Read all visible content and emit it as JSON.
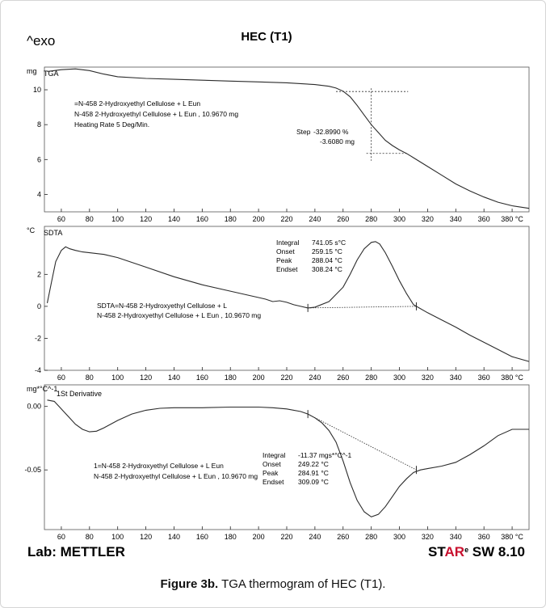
{
  "header": {
    "exo_label": "^exo",
    "title": "HEC (T1)"
  },
  "footer": {
    "lab": "Lab: METTLER",
    "software_pre": "ST",
    "software_ar": "AR",
    "software_e": "e",
    "software_post": " SW 8.10"
  },
  "caption": {
    "bold": "Figure 3b.",
    "text": " TGA thermogram of HEC (T1)."
  },
  "colors": {
    "curve": "#2b2b2b",
    "axis": "#222222",
    "accent_red": "#c8102e"
  },
  "chart_data": [
    {
      "type": "line",
      "title": "TGA",
      "ylabel": "mg",
      "x_unit": "°C",
      "xlim": [
        48,
        392
      ],
      "ylim": [
        3,
        11.3
      ],
      "x_ticks": [
        60,
        80,
        100,
        120,
        140,
        160,
        180,
        200,
        220,
        240,
        260,
        280,
        300,
        320,
        340,
        360,
        380
      ],
      "x_tick_labels": [
        "60",
        "80",
        "100",
        "120",
        "140",
        "160",
        "180",
        "200",
        "220",
        "240",
        "260",
        "280",
        "300",
        "320",
        "340",
        "360",
        "380 °C"
      ],
      "y_ticks": [
        4,
        6,
        8,
        10
      ],
      "y_tick_labels": [
        "4",
        "6",
        "8",
        "10"
      ],
      "series": [
        {
          "x": [
            50,
            60,
            70,
            80,
            90,
            100,
            120,
            140,
            160,
            180,
            200,
            220,
            240,
            250,
            255,
            260,
            265,
            270,
            275,
            280,
            285,
            290,
            295,
            300,
            305,
            310,
            320,
            330,
            340,
            350,
            360,
            370,
            380,
            392
          ],
          "values": [
            11.05,
            11.15,
            11.2,
            11.1,
            10.9,
            10.75,
            10.65,
            10.6,
            10.55,
            10.5,
            10.45,
            10.4,
            10.3,
            10.2,
            10.1,
            9.92,
            9.6,
            9.1,
            8.55,
            8.0,
            7.55,
            7.1,
            6.8,
            6.55,
            6.35,
            6.1,
            5.6,
            5.1,
            4.6,
            4.2,
            3.85,
            3.55,
            3.35,
            3.2
          ]
        }
      ],
      "annotations": [
        "=N-458 2-Hydroxyethyl Cellulose + L Eun",
        "N-458 2-Hydroxyethyl Cellulose + L Eun , 10.9670 mg",
        "Heating Rate 5 Deg/Min."
      ],
      "step": {
        "label": "Step",
        "percent": "-32.8990 %",
        "mass": "-3.6080 mg",
        "start_x": 255,
        "end_x": 305,
        "upper_y": 9.9,
        "lower_y": 6.35
      }
    },
    {
      "type": "line",
      "title": "SDTA",
      "ylabel": "°C",
      "x_unit": "°C",
      "xlim": [
        48,
        392
      ],
      "ylim": [
        -4,
        5
      ],
      "x_ticks": [
        60,
        80,
        100,
        120,
        140,
        160,
        180,
        200,
        220,
        240,
        260,
        280,
        300,
        320,
        340,
        360,
        380
      ],
      "x_tick_labels": [
        "60",
        "80",
        "100",
        "120",
        "140",
        "160",
        "180",
        "200",
        "220",
        "240",
        "260",
        "280",
        "300",
        "320",
        "340",
        "360",
        "380 °C"
      ],
      "y_ticks": [
        -4,
        -2,
        0,
        2
      ],
      "y_tick_labels": [
        "-4",
        "-2",
        "0",
        "2"
      ],
      "series": [
        {
          "x": [
            50,
            53,
            56,
            60,
            63,
            66,
            70,
            75,
            80,
            90,
            100,
            120,
            140,
            160,
            180,
            200,
            205,
            210,
            215,
            220,
            225,
            230,
            235,
            240,
            250,
            260,
            265,
            270,
            275,
            280,
            283,
            286,
            290,
            295,
            300,
            305,
            310,
            320,
            330,
            340,
            350,
            360,
            370,
            380,
            392
          ],
          "values": [
            0.2,
            1.5,
            2.8,
            3.5,
            3.72,
            3.6,
            3.5,
            3.4,
            3.35,
            3.25,
            3.05,
            2.45,
            1.85,
            1.35,
            0.95,
            0.55,
            0.45,
            0.3,
            0.35,
            0.25,
            0.1,
            0.0,
            -0.1,
            -0.05,
            0.3,
            1.2,
            2.0,
            2.9,
            3.6,
            4.0,
            4.05,
            3.9,
            3.35,
            2.5,
            1.6,
            0.8,
            0.1,
            -0.4,
            -0.85,
            -1.3,
            -1.8,
            -2.25,
            -2.7,
            -3.15,
            -3.45
          ]
        }
      ],
      "baseline": {
        "x": [
          235,
          312
        ],
        "values": [
          -0.1,
          0.0
        ]
      },
      "annotations": [
        "SDTA=N-458 2-Hydroxyethyl Cellulose + L",
        "N-458 2-Hydroxyethyl Cellulose + L Eun , 10.9670 mg"
      ],
      "integration": {
        "labels": [
          "Integral",
          "Onset",
          "Peak",
          "Endset"
        ],
        "values": [
          "741.05 s°C",
          "259.15 °C",
          "288.04 °C",
          "308.24 °C"
        ]
      }
    },
    {
      "type": "line",
      "title": "1St Derivative",
      "ylabel": "mg*°C^-1",
      "x_unit": "°C",
      "xlim": [
        48,
        392
      ],
      "ylim": [
        -0.097,
        0.017
      ],
      "x_ticks": [
        60,
        80,
        100,
        120,
        140,
        160,
        180,
        200,
        220,
        240,
        260,
        280,
        300,
        320,
        340,
        360,
        380
      ],
      "x_tick_labels": [
        "60",
        "80",
        "100",
        "120",
        "140",
        "160",
        "180",
        "200",
        "220",
        "240",
        "260",
        "280",
        "300",
        "320",
        "340",
        "360",
        "380 °C"
      ],
      "y_ticks": [
        0.0,
        -0.05
      ],
      "y_tick_labels": [
        "0.00",
        "-0.05"
      ],
      "series": [
        {
          "x": [
            50,
            55,
            60,
            65,
            70,
            75,
            80,
            85,
            90,
            100,
            110,
            120,
            130,
            140,
            160,
            180,
            200,
            210,
            220,
            230,
            235,
            240,
            245,
            250,
            255,
            260,
            265,
            270,
            275,
            280,
            285,
            290,
            295,
            300,
            305,
            310,
            315,
            320,
            330,
            340,
            350,
            360,
            370,
            380,
            392
          ],
          "values": [
            0.005,
            0.004,
            -0.002,
            -0.008,
            -0.014,
            -0.018,
            -0.02,
            -0.0195,
            -0.017,
            -0.011,
            -0.006,
            -0.003,
            -0.0015,
            -0.001,
            -0.001,
            -0.0005,
            -0.0005,
            -0.001,
            -0.002,
            -0.004,
            -0.006,
            -0.009,
            -0.013,
            -0.019,
            -0.028,
            -0.043,
            -0.06,
            -0.074,
            -0.083,
            -0.087,
            -0.085,
            -0.079,
            -0.071,
            -0.063,
            -0.057,
            -0.052,
            -0.05,
            -0.049,
            -0.047,
            -0.044,
            -0.038,
            -0.031,
            -0.023,
            -0.018,
            -0.018
          ]
        }
      ],
      "baseline": {
        "x": [
          235,
          312
        ],
        "values": [
          -0.006,
          -0.05
        ]
      },
      "annotations": [
        "1=N-458 2-Hydroxyethyl Cellulose + L Eun",
        "N-458 2-Hydroxyethyl Cellulose + L Eun , 10.9670 mg"
      ],
      "integration": {
        "labels": [
          "Integral",
          "Onset",
          "Peak",
          "Endset"
        ],
        "values": [
          "-11.37 mgs*°C^-1",
          "249.22 °C",
          "284.91 °C",
          "309.09 °C"
        ]
      }
    }
  ]
}
